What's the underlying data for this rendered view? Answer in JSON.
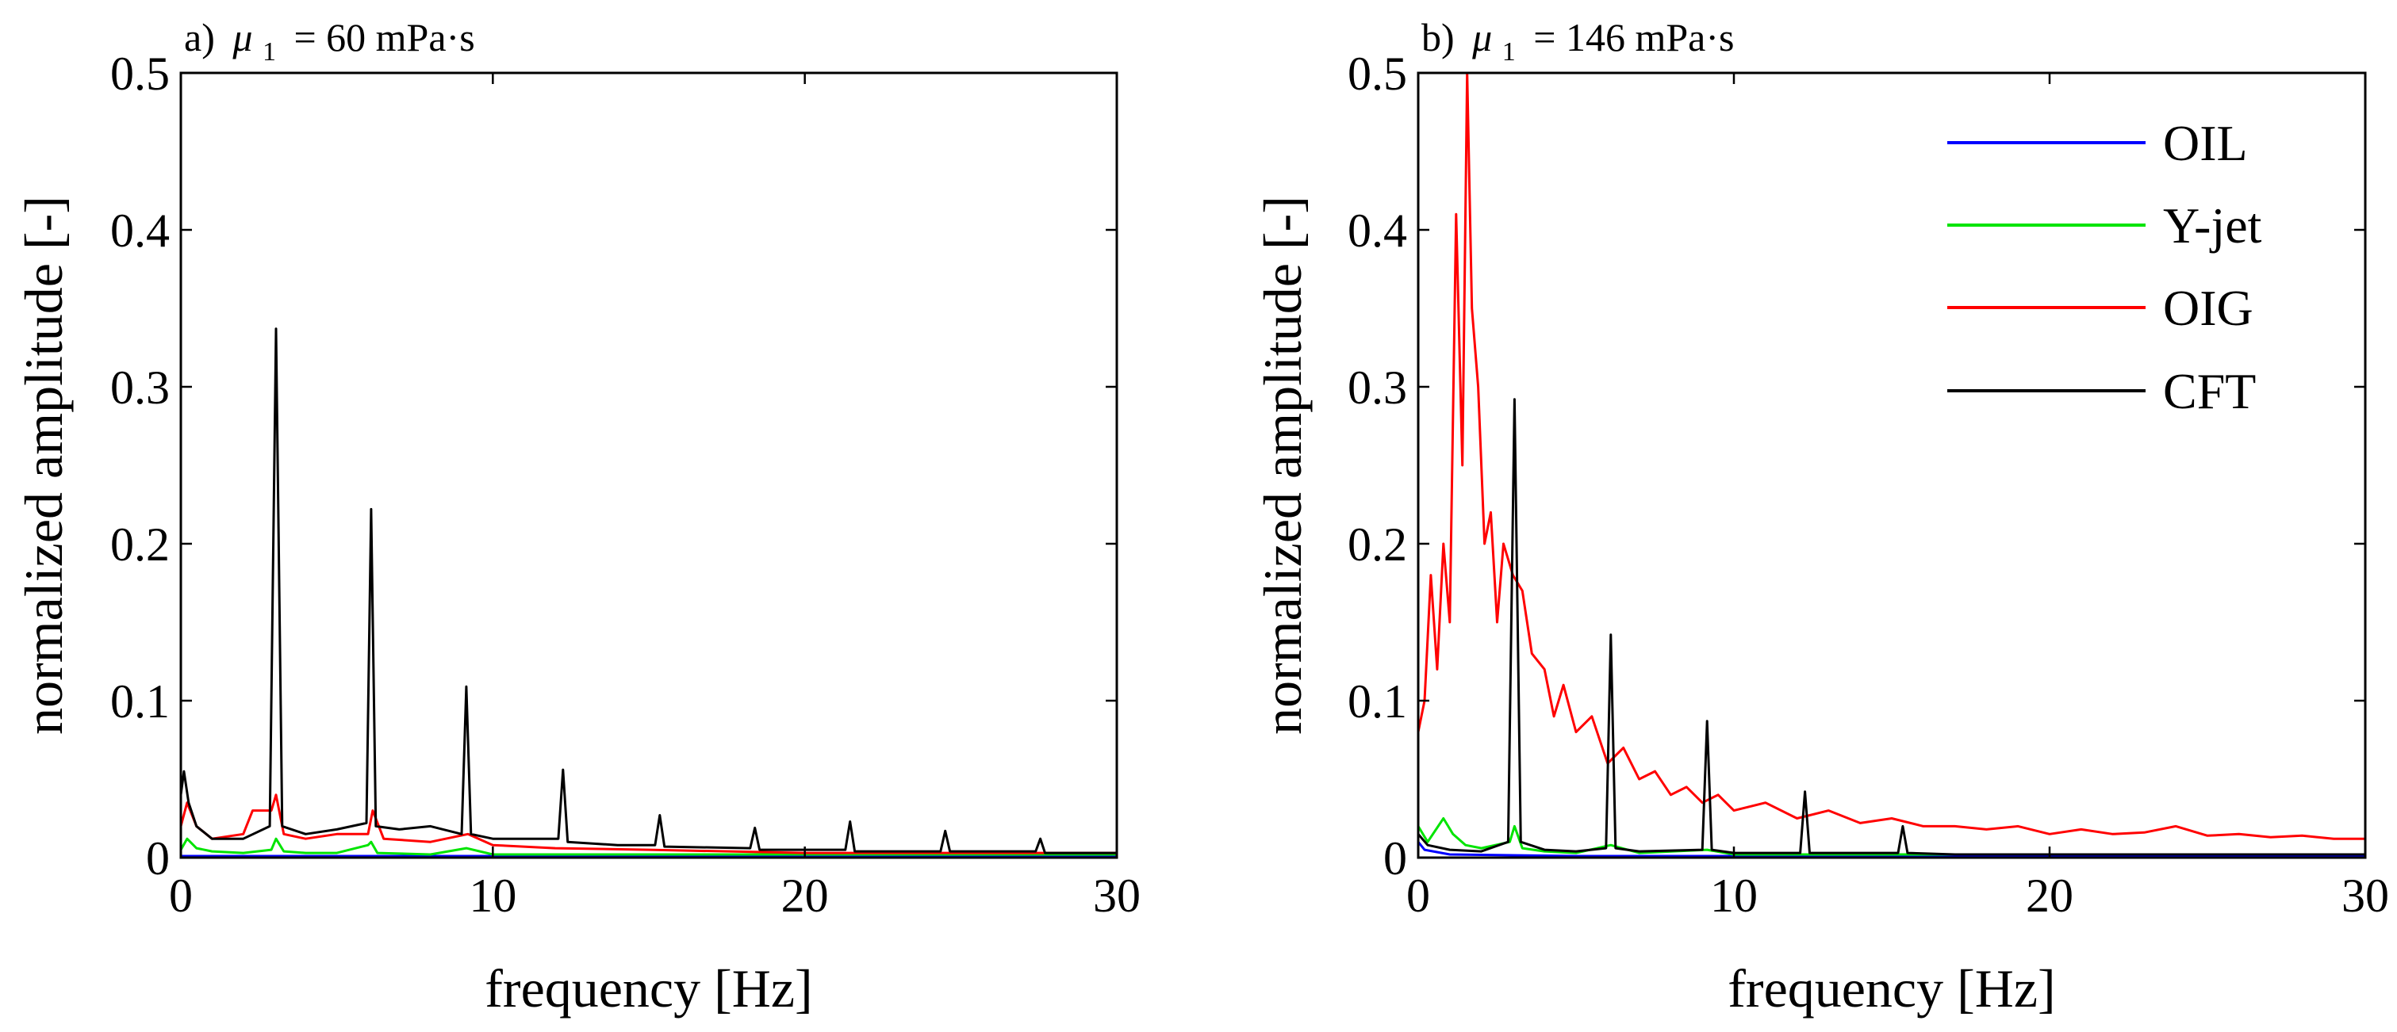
{
  "chart_data": [
    {
      "type": "line",
      "panel": "a",
      "title_prefix": "a)",
      "title_symbol": "μ",
      "title_subscript": "1",
      "title_suffix": "= 60 mPa·s",
      "xlabel": "frequency [Hz]",
      "ylabel": "normalized amplitude [-]",
      "xlim": [
        0,
        30
      ],
      "ylim": [
        0,
        0.5
      ],
      "xticks": [
        0,
        10,
        20,
        30
      ],
      "yticks": [
        0,
        0.1,
        0.2,
        0.3,
        0.4,
        0.5
      ],
      "xtick_labels": [
        "0",
        "10",
        "20",
        "30"
      ],
      "ytick_labels": [
        "0",
        "0.1",
        "0.2",
        "0.3",
        "0.4",
        "0.5"
      ],
      "grid": false,
      "series": [
        {
          "name": "OIL",
          "color": "#0000ff",
          "x": [
            0,
            5,
            10,
            15,
            20,
            25,
            30
          ],
          "y": [
            0.001,
            0.001,
            0.001,
            0.001,
            0.001,
            0.001,
            0.001
          ]
        },
        {
          "name": "Y-jet",
          "color": "#00e400",
          "x": [
            0,
            0.2,
            0.5,
            1.0,
            2.0,
            2.9,
            3.05,
            3.3,
            4.0,
            5.0,
            6.0,
            6.1,
            6.3,
            8.0,
            9.15,
            10,
            15,
            20,
            25,
            30
          ],
          "y": [
            0.005,
            0.012,
            0.006,
            0.004,
            0.003,
            0.005,
            0.012,
            0.004,
            0.003,
            0.003,
            0.008,
            0.01,
            0.003,
            0.002,
            0.006,
            0.002,
            0.002,
            0.002,
            0.002,
            0.002
          ]
        },
        {
          "name": "OIG",
          "color": "#ff0000",
          "x": [
            0,
            0.2,
            0.5,
            1.0,
            2.0,
            2.3,
            2.9,
            3.05,
            3.3,
            4.0,
            5.0,
            6.0,
            6.15,
            6.5,
            8.0,
            9.2,
            10,
            12,
            15,
            20,
            25,
            30
          ],
          "y": [
            0.02,
            0.035,
            0.02,
            0.012,
            0.015,
            0.03,
            0.03,
            0.04,
            0.015,
            0.012,
            0.015,
            0.015,
            0.03,
            0.012,
            0.01,
            0.015,
            0.008,
            0.006,
            0.005,
            0.003,
            0.003,
            0.003
          ]
        },
        {
          "name": "CFT",
          "color": "#000000",
          "x": [
            0,
            0.1,
            0.25,
            0.5,
            1.0,
            2.0,
            2.85,
            3.05,
            3.25,
            4.0,
            5.0,
            5.95,
            6.1,
            6.25,
            7.0,
            8.0,
            9.0,
            9.15,
            9.3,
            10.0,
            12.1,
            12.25,
            12.4,
            14.0,
            15.2,
            15.35,
            15.5,
            18.25,
            18.4,
            18.55,
            21.3,
            21.45,
            21.6,
            24.35,
            24.5,
            24.65,
            27.4,
            27.55,
            27.7,
            30
          ],
          "y": [
            0.04,
            0.055,
            0.035,
            0.02,
            0.012,
            0.012,
            0.02,
            0.337,
            0.02,
            0.015,
            0.018,
            0.022,
            0.222,
            0.02,
            0.018,
            0.02,
            0.015,
            0.109,
            0.015,
            0.012,
            0.012,
            0.056,
            0.01,
            0.008,
            0.008,
            0.027,
            0.007,
            0.006,
            0.019,
            0.005,
            0.005,
            0.023,
            0.004,
            0.004,
            0.017,
            0.004,
            0.004,
            0.012,
            0.003,
            0.003
          ]
        }
      ]
    },
    {
      "type": "line",
      "panel": "b",
      "title_prefix": "b)",
      "title_symbol": "μ",
      "title_subscript": "1",
      "title_suffix": "= 146 mPa·s",
      "xlabel": "frequency [Hz]",
      "ylabel": "normalized amplitude [-]",
      "xlim": [
        0,
        30
      ],
      "ylim": [
        0,
        0.5
      ],
      "xticks": [
        0,
        10,
        20,
        30
      ],
      "yticks": [
        0,
        0.1,
        0.2,
        0.3,
        0.4,
        0.5
      ],
      "xtick_labels": [
        "0",
        "10",
        "20",
        "30"
      ],
      "ytick_labels": [
        "0",
        "0.1",
        "0.2",
        "0.3",
        "0.4",
        "0.5"
      ],
      "grid": false,
      "legend": {
        "position": "top-right",
        "entries": [
          "OIL",
          "Y-jet",
          "OIG",
          "CFT"
        ]
      },
      "series": [
        {
          "name": "OIL",
          "color": "#0000ff",
          "x": [
            0,
            0.2,
            1,
            5,
            10,
            15,
            20,
            25,
            30
          ],
          "y": [
            0.01,
            0.005,
            0.002,
            0.001,
            0.001,
            0.001,
            0.001,
            0.001,
            0.001
          ]
        },
        {
          "name": "Y-jet",
          "color": "#00e400",
          "x": [
            0,
            0.3,
            0.8,
            1.1,
            1.5,
            2.0,
            2.9,
            3.05,
            3.3,
            4.0,
            5.0,
            6.1,
            7.0,
            9.15,
            10,
            15,
            20,
            25,
            30
          ],
          "y": [
            0.02,
            0.01,
            0.025,
            0.015,
            0.008,
            0.006,
            0.01,
            0.02,
            0.006,
            0.004,
            0.003,
            0.008,
            0.003,
            0.005,
            0.002,
            0.002,
            0.002,
            0.002,
            0.002
          ]
        },
        {
          "name": "OIG",
          "color": "#ff0000",
          "x": [
            0,
            0.2,
            0.4,
            0.6,
            0.8,
            1.0,
            1.2,
            1.4,
            1.55,
            1.7,
            1.9,
            2.1,
            2.3,
            2.5,
            2.7,
            3.0,
            3.3,
            3.6,
            4.0,
            4.3,
            4.6,
            5.0,
            5.5,
            6.0,
            6.5,
            7.0,
            7.5,
            8.0,
            8.5,
            9.0,
            9.5,
            10.0,
            11.0,
            12.0,
            13.0,
            14.0,
            15.0,
            16.0,
            17.0,
            18.0,
            19.0,
            20.0,
            21.0,
            22.0,
            23.0,
            24.0,
            25.0,
            26.0,
            27.0,
            28.0,
            29.0,
            30.0
          ],
          "y": [
            0.08,
            0.1,
            0.18,
            0.12,
            0.2,
            0.15,
            0.41,
            0.25,
            0.5,
            0.35,
            0.3,
            0.2,
            0.22,
            0.15,
            0.2,
            0.18,
            0.17,
            0.13,
            0.12,
            0.09,
            0.11,
            0.08,
            0.09,
            0.06,
            0.07,
            0.05,
            0.055,
            0.04,
            0.045,
            0.035,
            0.04,
            0.03,
            0.035,
            0.025,
            0.03,
            0.022,
            0.025,
            0.02,
            0.02,
            0.018,
            0.02,
            0.015,
            0.018,
            0.015,
            0.016,
            0.02,
            0.014,
            0.015,
            0.013,
            0.014,
            0.012,
            0.012
          ]
        },
        {
          "name": "CFT",
          "color": "#000000",
          "x": [
            0,
            0.3,
            1.0,
            2.0,
            2.85,
            3.05,
            3.25,
            4.0,
            5.0,
            5.95,
            6.1,
            6.25,
            7.0,
            9.0,
            9.15,
            9.3,
            10.0,
            12.1,
            12.25,
            12.4,
            14.0,
            15.2,
            15.35,
            15.5,
            17.0,
            20.0,
            25.0,
            30
          ],
          "y": [
            0.015,
            0.008,
            0.005,
            0.004,
            0.01,
            0.292,
            0.01,
            0.005,
            0.004,
            0.006,
            0.142,
            0.006,
            0.004,
            0.005,
            0.087,
            0.005,
            0.003,
            0.003,
            0.042,
            0.003,
            0.003,
            0.003,
            0.02,
            0.003,
            0.002,
            0.002,
            0.002,
            0.002
          ]
        }
      ]
    }
  ]
}
